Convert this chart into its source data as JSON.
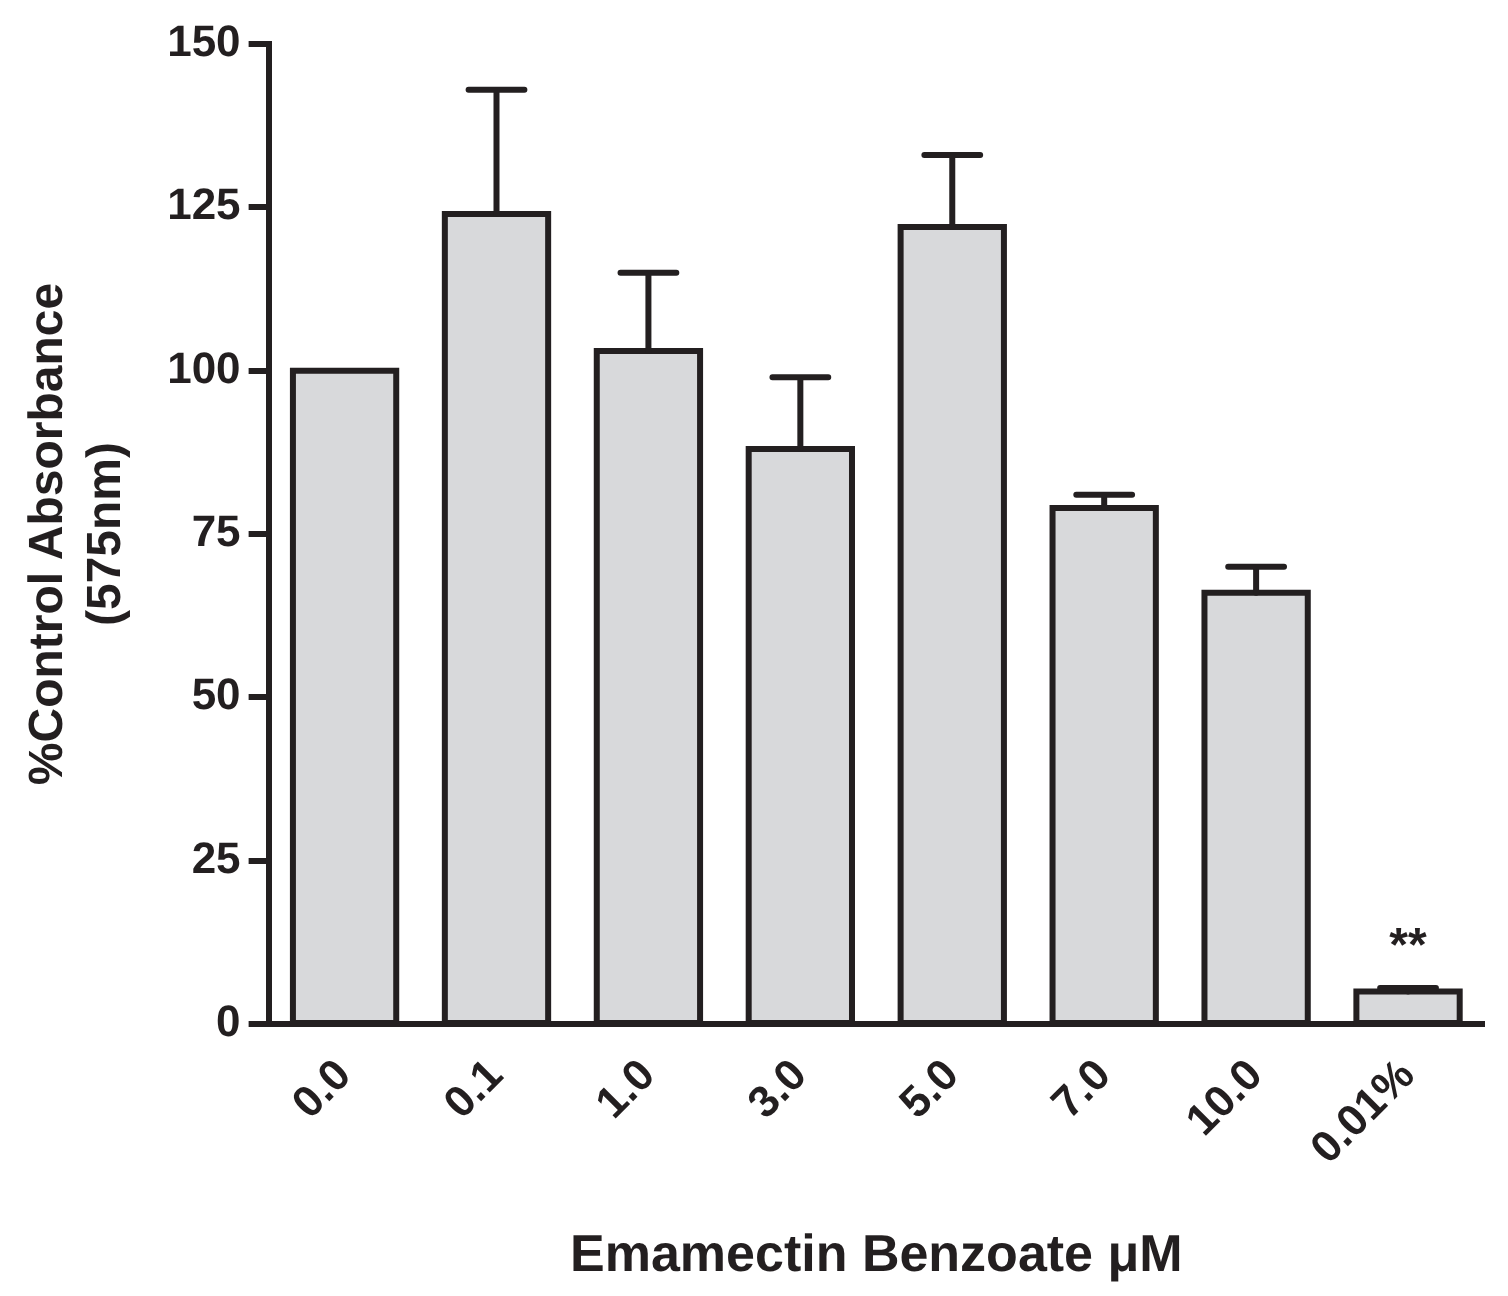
{
  "chart_data": {
    "type": "bar",
    "xlabel": "Emamectin Benzoate μM",
    "ylabel": "%Control Absorbance\n(575nm)",
    "categories": [
      "0.0",
      "0.1",
      "1.0",
      "3.0",
      "5.0",
      "7.0",
      "10.0",
      "0.01%"
    ],
    "values": [
      100,
      124,
      103,
      88,
      122,
      79,
      66,
      5
    ],
    "errors": [
      null,
      [
        124,
        143
      ],
      [
        103,
        115
      ],
      [
        88,
        99
      ],
      [
        122,
        133
      ],
      [
        79,
        81
      ],
      [
        66,
        70
      ],
      [
        5,
        5.5
      ]
    ],
    "color": "#d8d9db",
    "ylim": [
      0,
      150
    ],
    "yticks": [
      0,
      25,
      50,
      75,
      100,
      125,
      150
    ],
    "grid": false,
    "legend": false,
    "annotations": [
      "**"
    ]
  }
}
